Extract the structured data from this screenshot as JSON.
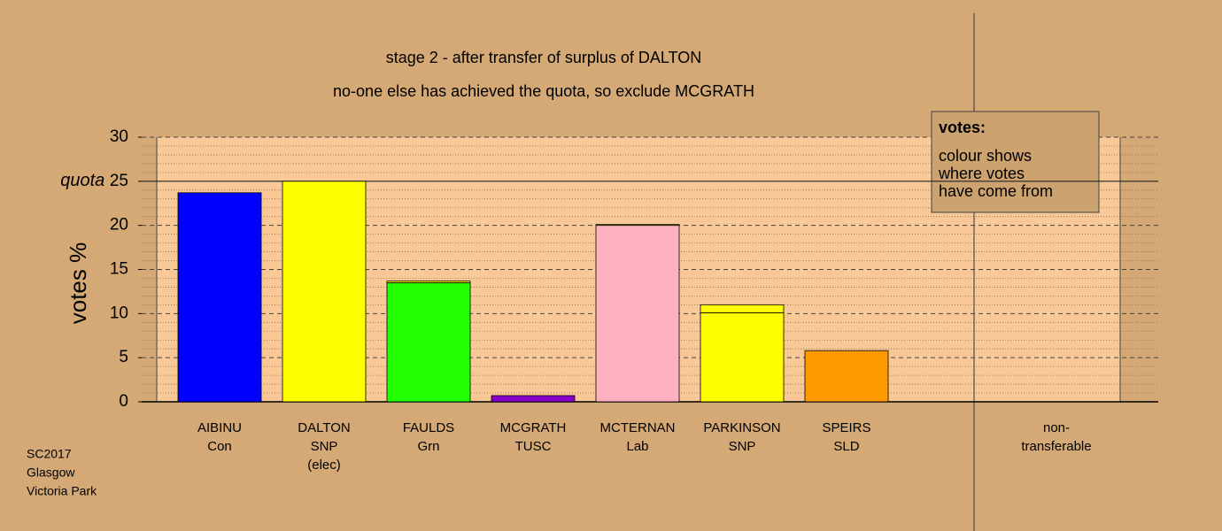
{
  "chart_data": {
    "type": "stacked_bar",
    "title": "stage 2 - after transfer of surplus of DALTON",
    "subtitle": "no-one else has achieved the quota, so exclude MCGRATH",
    "y_label": "votes %",
    "categories": [
      [
        "AIBINU",
        "Con"
      ],
      [
        "DALTON",
        "SNP",
        "(elec)"
      ],
      [
        "FAULDS",
        "Grn"
      ],
      [
        "MCGRATH",
        "TUSC"
      ],
      [
        "MCTERNAN",
        "Lab"
      ],
      [
        "PARKINSON",
        "SNP"
      ],
      [
        "SPEIRS",
        "SLD"
      ],
      [
        "non-",
        "transferable"
      ]
    ],
    "series": [
      {
        "colors": [
          "#0000ff",
          "#ffff00",
          "#22ff00",
          "#8800cc",
          "#ffb0c0",
          "#ffff00",
          "#ff9900",
          "#ffff00"
        ],
        "values": [
          23.7,
          25,
          13.5,
          0.7,
          20,
          10.1,
          5.8,
          0
        ]
      },
      {
        "color": "#ffff00",
        "values": [
          0,
          0,
          0.2,
          0,
          0.1,
          0.9,
          0,
          0
        ]
      }
    ],
    "ylim": [
      0,
      30
    ],
    "yticks": [
      0,
      5,
      10,
      15,
      20,
      {
        "value": 25,
        "label": "quota 25"
      },
      30
    ],
    "quota": 25,
    "quota_label": "quota",
    "grid": true,
    "legend": {
      "title": "votes:",
      "lines": [
        "colour shows",
        "where votes",
        "have come from"
      ]
    },
    "footer": [
      "SC2017",
      "Glasgow",
      "Victoria Park"
    ]
  }
}
